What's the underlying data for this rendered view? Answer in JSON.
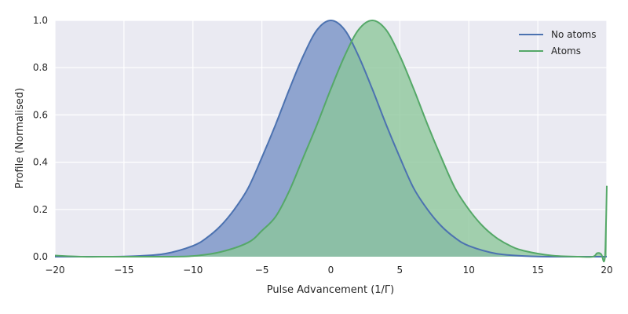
{
  "chart_data": {
    "type": "area",
    "xlabel": "Pulse Advancement (1/Γ)",
    "ylabel": "Profile (Normalised)",
    "xlim": [
      -20,
      20
    ],
    "ylim": [
      0,
      1.0
    ],
    "xticks": [
      "−20",
      "−15",
      "−10",
      "−5",
      "0",
      "5",
      "10",
      "15",
      "20"
    ],
    "yticks": [
      "0.0",
      "0.2",
      "0.4",
      "0.6",
      "0.8",
      "1.0"
    ],
    "grid": true,
    "legend_position": "top-right",
    "series": [
      {
        "name": "No atoms",
        "color": "#4C72B0",
        "fill": "#8FA4CF",
        "x": [
          -20,
          -18,
          -16,
          -14,
          -12,
          -10,
          -9,
          -8,
          -7,
          -6,
          -5,
          -4,
          -3,
          -2,
          -1,
          0,
          1,
          2,
          3,
          4,
          5,
          6,
          7,
          8,
          9,
          10,
          12,
          14,
          16,
          18,
          20
        ],
        "y": [
          0.0,
          0.0,
          0.0,
          0.003,
          0.013,
          0.046,
          0.08,
          0.13,
          0.2,
          0.29,
          0.42,
          0.56,
          0.71,
          0.85,
          0.96,
          1.0,
          0.96,
          0.85,
          0.71,
          0.56,
          0.42,
          0.29,
          0.2,
          0.13,
          0.08,
          0.046,
          0.013,
          0.003,
          0.0,
          0.0,
          0.0
        ]
      },
      {
        "name": "Atoms",
        "color": "#55A868",
        "fill": "#8CC79A",
        "x": [
          -20,
          -18,
          -16,
          -14,
          -12,
          -10,
          -8,
          -6,
          -5,
          -4,
          -3,
          -2,
          -1,
          0,
          1,
          2,
          3,
          4,
          5,
          6,
          7,
          8,
          9,
          10,
          11,
          12,
          13,
          14,
          16,
          18,
          19,
          19.3,
          19.6,
          19.8,
          19.9,
          20
        ],
        "y": [
          0.005,
          0.0,
          0.0,
          0.0,
          0.0,
          0.003,
          0.02,
          0.06,
          0.11,
          0.17,
          0.28,
          0.42,
          0.56,
          0.71,
          0.85,
          0.96,
          1.0,
          0.96,
          0.85,
          0.71,
          0.56,
          0.42,
          0.29,
          0.2,
          0.13,
          0.08,
          0.046,
          0.025,
          0.005,
          0.0,
          0.0,
          0.015,
          0.01,
          -0.02,
          0.04,
          0.3
        ]
      }
    ]
  }
}
